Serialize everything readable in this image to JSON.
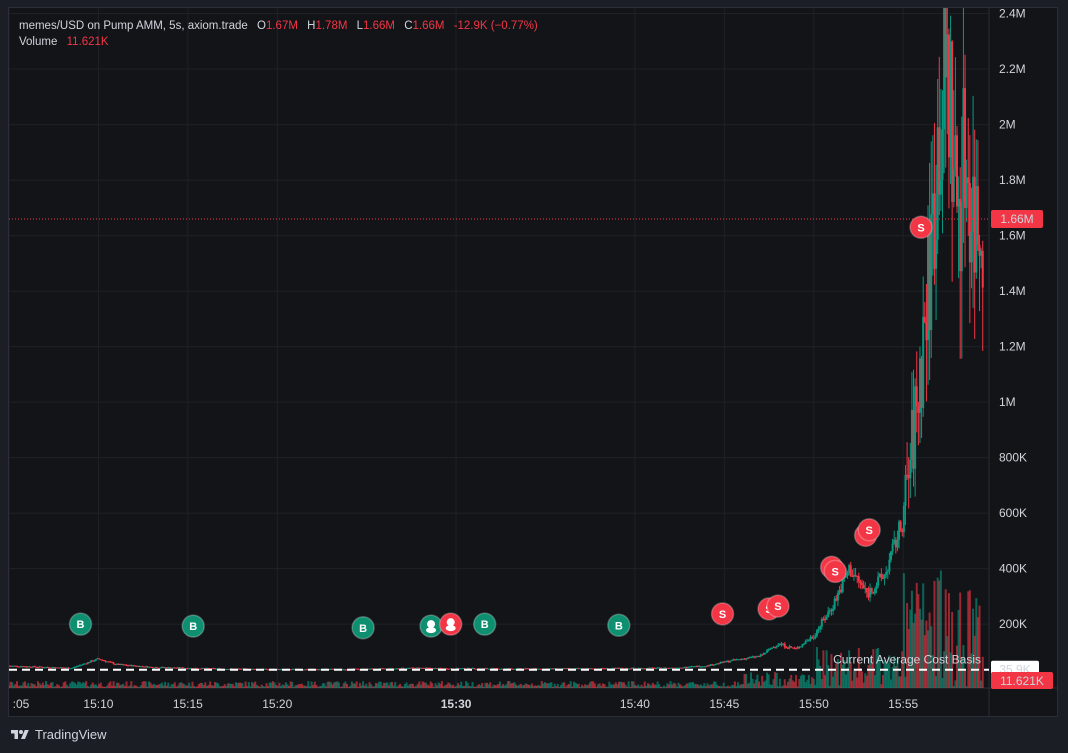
{
  "legend": {
    "symbol": "memes/USD on Pump AMM, 5s, axiom.trade",
    "o_label": "O",
    "o_value": "1.67M",
    "h_label": "H",
    "h_value": "1.78M",
    "l_label": "L",
    "l_value": "1.66M",
    "c_label": "C",
    "c_value": "1.66M",
    "change": "-12.9K (−0.77%)",
    "volume_label": "Volume",
    "volume_value": "11.621K"
  },
  "footer": {
    "brand": "TradingView"
  },
  "colors": {
    "up": "#089981",
    "down": "#f23645",
    "marker_buy": "#0e8f6f",
    "marker_sell": "#f23645",
    "background": "#131418",
    "grid": "#1f2129"
  },
  "chart_data": {
    "type": "candlestick",
    "symbol": "memes/USD",
    "interval": "5s",
    "y_axis": {
      "ticks": [
        200000,
        400000,
        600000,
        800000,
        1000000,
        1200000,
        1400000,
        1600000,
        1800000,
        2000000,
        2200000,
        2400000
      ],
      "tick_labels": [
        "200K",
        "400K",
        "600K",
        "800K",
        "1M",
        "1.2M",
        "1.4M",
        "1.6M",
        "1.8M",
        "2M",
        "2.2M",
        "2.4M"
      ],
      "ylim": [
        -30000,
        2420000
      ]
    },
    "x_axis": {
      "tick_labels": [
        ":05",
        "15:10",
        "15:15",
        "15:20",
        "15:30",
        "15:40",
        "15:45",
        "15:50",
        "15:55"
      ],
      "tick_minutes": [
        5,
        10,
        15,
        20,
        30,
        40,
        45,
        50,
        55
      ],
      "bold_label": "15:30",
      "xlim_minutes": [
        5,
        59.8
      ]
    },
    "last_price": {
      "value": 1660000,
      "label": "1.66M"
    },
    "cost_basis": {
      "value": 35900,
      "label": "35.9K",
      "text": "Current Average Cost Basis"
    },
    "volume_label": "11.621K",
    "price_path": [
      [
        5,
        50000
      ],
      [
        7,
        45000
      ],
      [
        8.5,
        42000
      ],
      [
        10,
        75000
      ],
      [
        11,
        55000
      ],
      [
        13,
        45000
      ],
      [
        16,
        40000
      ],
      [
        20,
        37000
      ],
      [
        25,
        38000
      ],
      [
        28,
        42000
      ],
      [
        29,
        40000
      ],
      [
        31,
        40000
      ],
      [
        34,
        39000
      ],
      [
        38,
        40000
      ],
      [
        42,
        42000
      ],
      [
        44,
        50000
      ],
      [
        45.5,
        70000
      ],
      [
        47,
        85000
      ],
      [
        48,
        130000
      ],
      [
        49,
        110000
      ],
      [
        50,
        160000
      ],
      [
        51,
        260000
      ],
      [
        52,
        400000
      ],
      [
        53,
        310000
      ],
      [
        54,
        380000
      ],
      [
        55,
        580000
      ],
      [
        55.8,
        1000000
      ],
      [
        56.5,
        1500000
      ],
      [
        57,
        2000000
      ],
      [
        57.5,
        2200000
      ],
      [
        58,
        1700000
      ],
      [
        58.5,
        1900000
      ],
      [
        59,
        1650000
      ],
      [
        59.5,
        1660000
      ]
    ],
    "markers": [
      {
        "type": "B",
        "minute": 9.0,
        "value": 200000
      },
      {
        "type": "B",
        "minute": 15.3,
        "value": 193000
      },
      {
        "type": "B",
        "minute": 24.8,
        "value": 187000
      },
      {
        "type": "P",
        "minute": 28.6,
        "value": 193000
      },
      {
        "type": "P",
        "minute": 29.7,
        "value": 200000
      },
      {
        "type": "B",
        "minute": 31.6,
        "value": 200000
      },
      {
        "type": "B",
        "minute": 39.1,
        "value": 196000
      },
      {
        "type": "S",
        "minute": 44.9,
        "value": 237000
      },
      {
        "type": "S",
        "minute": 47.5,
        "value": 255000
      },
      {
        "type": "S",
        "minute": 48.0,
        "value": 265000
      },
      {
        "type": "S",
        "minute": 51.0,
        "value": 405000
      },
      {
        "type": "S",
        "minute": 51.2,
        "value": 390000
      },
      {
        "type": "S",
        "minute": 52.9,
        "value": 520000
      },
      {
        "type": "S",
        "minute": 53.1,
        "value": 540000
      },
      {
        "type": "S",
        "minute": 56.0,
        "value": 1630000
      }
    ]
  }
}
